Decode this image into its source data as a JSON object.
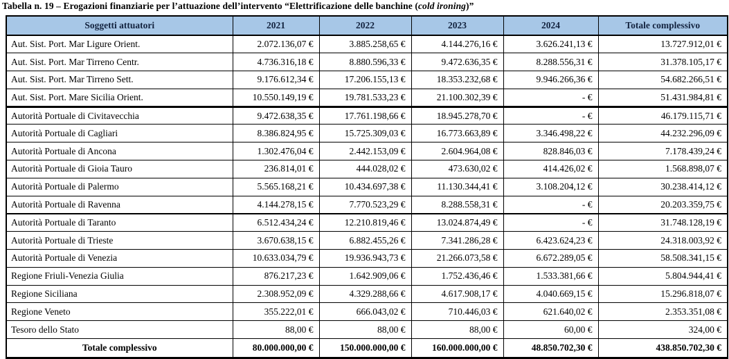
{
  "title": {
    "prefix": "Tabella n. 19 – Erogazioni finanziarie per l’attuazione dell’intervento “Elettrificazione delle banchine (",
    "italic": "cold ironing",
    "suffix": ")”"
  },
  "colors": {
    "header_bg": "#a7c7e7",
    "header_text": "#13233f",
    "border": "#000000"
  },
  "table": {
    "headers": [
      "Soggetti attuatori",
      "2021",
      "2022",
      "2023",
      "2024",
      "Totale complessivo"
    ],
    "rows": [
      {
        "name": "Aut. Sist. Port. Mar Ligure Orient.",
        "sep": "normal",
        "values": [
          "2.072.136,07 €",
          "3.885.258,65 €",
          "4.144.276,16 €",
          "3.626.241,13 €",
          "13.727.912,01 €"
        ]
      },
      {
        "name": "Aut. Sist. Port. Mar Tirreno Centr.",
        "sep": "normal",
        "values": [
          "4.736.316,18 €",
          "8.880.596,33 €",
          "9.472.636,35 €",
          "8.288.556,31 €",
          "31.378.105,17 €"
        ]
      },
      {
        "name": "Aut. Sist. Port. Mar Tirreno Sett.",
        "sep": "normal",
        "values": [
          "9.176.612,34 €",
          "17.206.155,13 €",
          "18.353.232,68 €",
          "9.946.266,36 €",
          "54.682.266,51 €"
        ]
      },
      {
        "name": "Aut. Sist. Port. Mare Sicilia Orient.",
        "sep": "thick",
        "values": [
          "10.550.149,19 €",
          "19.781.533,23 €",
          "21.100.302,39 €",
          "- €",
          "51.431.984,81 €"
        ]
      },
      {
        "name": "Autorità Portuale di Civitavecchia",
        "sep": "normal",
        "values": [
          "9.472.638,35 €",
          "17.761.198,66 €",
          "18.945.278,70 €",
          "- €",
          "46.179.115,71 €"
        ]
      },
      {
        "name": "Autorità Portuale di Cagliari",
        "sep": "normal",
        "values": [
          "8.386.824,95 €",
          "15.725.309,03 €",
          "16.773.663,89 €",
          "3.346.498,22 €",
          "44.232.296,09 €"
        ]
      },
      {
        "name": "Autorità Portuale di Ancona",
        "sep": "normal",
        "values": [
          "1.302.476,04 €",
          "2.442.153,09 €",
          "2.604.964,08 €",
          "828.846,03 €",
          "7.178.439,24 €"
        ]
      },
      {
        "name": "Autorità Portuale di Gioia Tauro",
        "sep": "normal",
        "values": [
          "236.814,01 €",
          "444.028,02 €",
          "473.630,02 €",
          "414.426,02 €",
          "1.568.898,07 €"
        ]
      },
      {
        "name": "Autorità Portuale di Palermo",
        "sep": "normal",
        "values": [
          "5.565.168,21 €",
          "10.434.697,38 €",
          "11.130.344,41 €",
          "3.108.204,12 €",
          "30.238.414,12 €"
        ]
      },
      {
        "name": "Autorità Portuale di Ravenna",
        "sep": "medium",
        "values": [
          "4.144.278,15 €",
          "7.770.523,29 €",
          "8.288.558,31 €",
          "- €",
          "20.203.359,75 €"
        ]
      },
      {
        "name": "Autorità Portuale di Taranto",
        "sep": "normal",
        "values": [
          "6.512.434,24 €",
          "12.210.819,46 €",
          "13.024.874,49 €",
          "- €",
          "31.748.128,19 €"
        ]
      },
      {
        "name": "Autorità Portuale di Trieste",
        "sep": "normal",
        "values": [
          "3.670.638,15 €",
          "6.882.455,26 €",
          "7.341.286,28 €",
          "6.423.624,23 €",
          "24.318.003,92 €"
        ]
      },
      {
        "name": "Autorità Portuale di Venezia",
        "sep": "normal",
        "values": [
          "10.633.034,79 €",
          "19.936.943,73 €",
          "21.266.073,58 €",
          "6.672.289,05 €",
          "58.508.341,15 €"
        ]
      },
      {
        "name": "Regione Friuli-Venezia Giulia",
        "sep": "normal",
        "values": [
          "876.217,23 €",
          "1.642.909,06 €",
          "1.752.436,46 €",
          "1.533.381,66 €",
          "5.804.944,41 €"
        ]
      },
      {
        "name": "Regione Siciliana",
        "sep": "normal",
        "values": [
          "2.308.952,09 €",
          "4.329.288,66 €",
          "4.617.908,17 €",
          "4.040.669,15 €",
          "15.296.818,07 €"
        ]
      },
      {
        "name": "Regione Veneto",
        "sep": "normal",
        "values": [
          "355.222,01 €",
          "666.043,02 €",
          "710.446,03 €",
          "621.640,02 €",
          "2.353.351,08 €"
        ]
      },
      {
        "name": "Tesoro dello Stato",
        "sep": "normal",
        "values": [
          "88,00 €",
          "88,00 €",
          "88,00 €",
          "60,00 €",
          "324,00 €"
        ]
      }
    ],
    "total_row": {
      "label": "Totale complessivo",
      "values": [
        "80.000.000,00 €",
        "150.000.000,00 €",
        "160.000.000,00 €",
        "48.850.702,30 €",
        "438.850.702,30 €"
      ]
    }
  }
}
